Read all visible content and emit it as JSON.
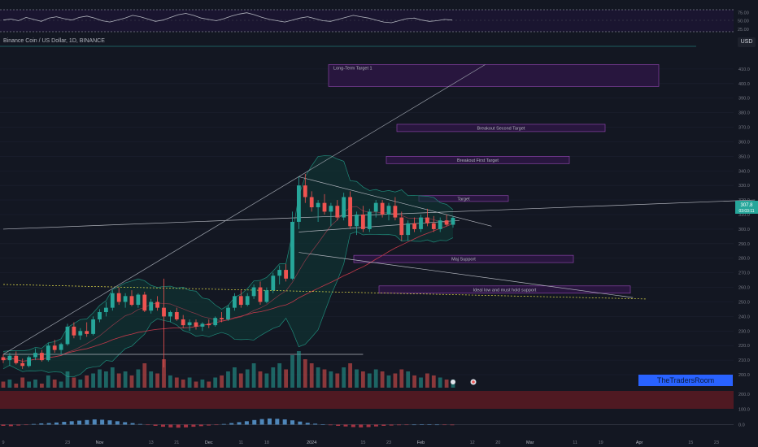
{
  "symbol_title": "Binance Coin / US Dollar, 1D, BINANCE",
  "currency": "USD",
  "brand": "TheTradersRoom",
  "last_price": "307.8",
  "countdown": "03:03:11",
  "colors": {
    "bg": "#131722",
    "up": "#26a69a",
    "down": "#ef5350",
    "zone_fill": "#2a1640",
    "zone_border": "#8e44ad",
    "band": "#1f8a7a",
    "grid": "#1c2030",
    "axis_text": "#787b86",
    "brand": "#2962ff"
  },
  "chart_data": [
    {
      "type": "line",
      "panel": "oscillator-top",
      "ylim": [
        0,
        100
      ],
      "y_ticks": [
        "75.00",
        "50.00",
        "25.00"
      ],
      "series": [
        {
          "values": [
            52,
            55,
            50,
            60,
            54,
            48,
            58,
            62,
            56,
            52,
            60,
            64,
            58,
            50,
            46,
            52,
            58,
            66,
            62,
            55,
            48,
            52,
            60,
            68,
            72,
            66,
            58,
            54,
            50,
            56,
            64,
            70,
            74,
            68,
            60,
            54,
            50,
            46,
            52,
            58,
            62,
            56,
            50,
            48,
            54,
            60,
            66,
            62,
            58,
            52,
            46,
            44,
            50,
            56,
            58,
            52,
            48,
            50,
            54,
            52
          ],
          "color": "#b2b5be"
        }
      ]
    },
    {
      "type": "candlestick",
      "panel": "price",
      "ylim": [
        195,
        425
      ],
      "y_ticks": [
        "410.0",
        "400.0",
        "390.0",
        "380.0",
        "370.0",
        "360.0",
        "350.0",
        "340.0",
        "330.0",
        "320.0",
        "310.0",
        "300.0",
        "290.0",
        "280.0",
        "270.0",
        "260.0",
        "250.0",
        "240.0",
        "230.0",
        "220.0",
        "210.0",
        "200.0"
      ],
      "x_ticks": [
        "9",
        "23",
        "Nov",
        "13",
        "21",
        "Dec",
        "11",
        "18",
        "2024",
        "15",
        "23",
        "Feb",
        "12",
        "20",
        "Mar",
        "11",
        "19",
        "Apr",
        "15",
        "23"
      ],
      "candles": [
        {
          "o": 212,
          "h": 214,
          "l": 208,
          "c": 210
        },
        {
          "o": 210,
          "h": 215,
          "l": 206,
          "c": 213
        },
        {
          "o": 213,
          "h": 216,
          "l": 207,
          "c": 208
        },
        {
          "o": 208,
          "h": 211,
          "l": 204,
          "c": 206
        },
        {
          "o": 206,
          "h": 213,
          "l": 205,
          "c": 212
        },
        {
          "o": 212,
          "h": 218,
          "l": 210,
          "c": 215
        },
        {
          "o": 215,
          "h": 217,
          "l": 209,
          "c": 210
        },
        {
          "o": 210,
          "h": 222,
          "l": 209,
          "c": 220
        },
        {
          "o": 220,
          "h": 224,
          "l": 215,
          "c": 217
        },
        {
          "o": 217,
          "h": 222,
          "l": 214,
          "c": 221
        },
        {
          "o": 221,
          "h": 235,
          "l": 220,
          "c": 233
        },
        {
          "o": 233,
          "h": 236,
          "l": 225,
          "c": 227
        },
        {
          "o": 227,
          "h": 232,
          "l": 224,
          "c": 230
        },
        {
          "o": 230,
          "h": 236,
          "l": 226,
          "c": 228
        },
        {
          "o": 228,
          "h": 240,
          "l": 227,
          "c": 238
        },
        {
          "o": 238,
          "h": 245,
          "l": 236,
          "c": 243
        },
        {
          "o": 243,
          "h": 250,
          "l": 240,
          "c": 246
        },
        {
          "o": 246,
          "h": 258,
          "l": 244,
          "c": 256
        },
        {
          "o": 256,
          "h": 260,
          "l": 248,
          "c": 250
        },
        {
          "o": 250,
          "h": 256,
          "l": 246,
          "c": 254
        },
        {
          "o": 254,
          "h": 258,
          "l": 247,
          "c": 248
        },
        {
          "o": 248,
          "h": 256,
          "l": 246,
          "c": 255
        },
        {
          "o": 255,
          "h": 257,
          "l": 243,
          "c": 244
        },
        {
          "o": 244,
          "h": 252,
          "l": 242,
          "c": 250
        },
        {
          "o": 250,
          "h": 254,
          "l": 244,
          "c": 246
        },
        {
          "o": 246,
          "h": 266,
          "l": 205,
          "c": 240
        },
        {
          "o": 240,
          "h": 244,
          "l": 236,
          "c": 243
        },
        {
          "o": 243,
          "h": 246,
          "l": 237,
          "c": 238
        },
        {
          "o": 238,
          "h": 241,
          "l": 232,
          "c": 234
        },
        {
          "o": 234,
          "h": 238,
          "l": 230,
          "c": 236
        },
        {
          "o": 236,
          "h": 238,
          "l": 231,
          "c": 233
        },
        {
          "o": 233,
          "h": 236,
          "l": 230,
          "c": 235
        },
        {
          "o": 235,
          "h": 238,
          "l": 232,
          "c": 234
        },
        {
          "o": 234,
          "h": 240,
          "l": 233,
          "c": 239
        },
        {
          "o": 239,
          "h": 243,
          "l": 236,
          "c": 238
        },
        {
          "o": 238,
          "h": 248,
          "l": 237,
          "c": 246
        },
        {
          "o": 246,
          "h": 256,
          "l": 244,
          "c": 254
        },
        {
          "o": 254,
          "h": 258,
          "l": 246,
          "c": 248
        },
        {
          "o": 248,
          "h": 256,
          "l": 247,
          "c": 254
        },
        {
          "o": 254,
          "h": 262,
          "l": 252,
          "c": 260
        },
        {
          "o": 260,
          "h": 264,
          "l": 248,
          "c": 250
        },
        {
          "o": 250,
          "h": 260,
          "l": 249,
          "c": 258
        },
        {
          "o": 258,
          "h": 270,
          "l": 256,
          "c": 268
        },
        {
          "o": 268,
          "h": 275,
          "l": 262,
          "c": 272
        },
        {
          "o": 272,
          "h": 276,
          "l": 264,
          "c": 266
        },
        {
          "o": 266,
          "h": 312,
          "l": 265,
          "c": 305
        },
        {
          "o": 305,
          "h": 336,
          "l": 300,
          "c": 330
        },
        {
          "o": 330,
          "h": 338,
          "l": 318,
          "c": 322
        },
        {
          "o": 322,
          "h": 326,
          "l": 312,
          "c": 315
        },
        {
          "o": 315,
          "h": 320,
          "l": 305,
          "c": 318
        },
        {
          "o": 318,
          "h": 324,
          "l": 310,
          "c": 312
        },
        {
          "o": 312,
          "h": 318,
          "l": 302,
          "c": 316
        },
        {
          "o": 316,
          "h": 320,
          "l": 306,
          "c": 308
        },
        {
          "o": 308,
          "h": 325,
          "l": 306,
          "c": 322
        },
        {
          "o": 322,
          "h": 326,
          "l": 300,
          "c": 302
        },
        {
          "o": 302,
          "h": 312,
          "l": 296,
          "c": 310
        },
        {
          "o": 310,
          "h": 316,
          "l": 298,
          "c": 300
        },
        {
          "o": 300,
          "h": 314,
          "l": 298,
          "c": 312
        },
        {
          "o": 312,
          "h": 320,
          "l": 308,
          "c": 318
        },
        {
          "o": 318,
          "h": 320,
          "l": 308,
          "c": 310
        },
        {
          "o": 310,
          "h": 318,
          "l": 306,
          "c": 316
        },
        {
          "o": 316,
          "h": 322,
          "l": 306,
          "c": 308
        },
        {
          "o": 308,
          "h": 312,
          "l": 292,
          "c": 296
        },
        {
          "o": 296,
          "h": 306,
          "l": 292,
          "c": 304
        },
        {
          "o": 304,
          "h": 308,
          "l": 298,
          "c": 300
        },
        {
          "o": 300,
          "h": 310,
          "l": 298,
          "c": 308
        },
        {
          "o": 308,
          "h": 314,
          "l": 302,
          "c": 304
        },
        {
          "o": 304,
          "h": 309,
          "l": 298,
          "c": 300
        },
        {
          "o": 300,
          "h": 308,
          "l": 298,
          "c": 306
        },
        {
          "o": 306,
          "h": 310,
          "l": 302,
          "c": 303
        },
        {
          "o": 303,
          "h": 309,
          "l": 301,
          "c": 307.8
        }
      ],
      "annotations": [
        {
          "text": "Long-Term Target 1",
          "from": 398,
          "to": 413
        },
        {
          "text": "Breakout Second Target",
          "from": 367,
          "to": 372
        },
        {
          "text": "Breakout First Target",
          "from": 345,
          "to": 350
        },
        {
          "text": "Target",
          "from": 319,
          "to": 323
        },
        {
          "text": "Maj Support",
          "from": 277,
          "to": 282
        },
        {
          "text": "Ideal low and must hold support",
          "from": 256,
          "to": 261
        }
      ],
      "volume": [
        3,
        4,
        2,
        5,
        3,
        4,
        2,
        6,
        4,
        3,
        8,
        5,
        4,
        6,
        7,
        9,
        8,
        10,
        7,
        8,
        6,
        9,
        12,
        8,
        7,
        14,
        6,
        5,
        4,
        5,
        3,
        4,
        3,
        5,
        6,
        8,
        10,
        7,
        9,
        12,
        8,
        7,
        10,
        12,
        9,
        16,
        18,
        14,
        12,
        10,
        9,
        8,
        7,
        10,
        12,
        9,
        8,
        7,
        9,
        8,
        6,
        7,
        9,
        8,
        6,
        5,
        7,
        6,
        5,
        4,
        4
      ]
    },
    {
      "type": "bar",
      "panel": "macd",
      "ylim": [
        -40,
        220
      ],
      "y_ticks": [
        "200.0",
        "100.0",
        "0.0"
      ],
      "values": [
        -8,
        -10,
        -6,
        -2,
        4,
        8,
        10,
        14,
        18,
        22,
        26,
        30,
        34,
        32,
        28,
        22,
        16,
        10,
        4,
        -2,
        -8,
        -14,
        -18,
        -20,
        -18,
        -14,
        -10,
        -6,
        -2,
        4,
        10,
        16,
        22,
        30,
        36,
        40,
        38,
        34,
        28,
        20,
        12,
        6,
        2,
        -4,
        -8,
        -12,
        -16,
        -18,
        -16,
        -12,
        -8,
        -6,
        -4,
        -2,
        0,
        2,
        2,
        0,
        -2,
        -4
      ]
    }
  ]
}
